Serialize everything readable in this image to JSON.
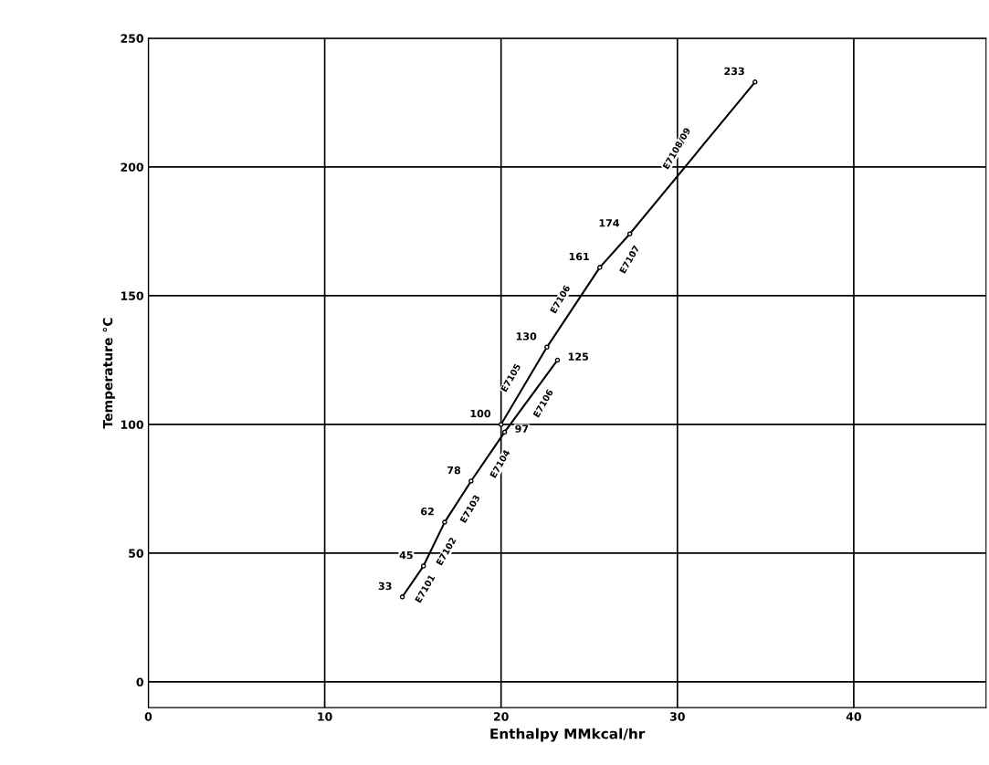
{
  "chart_data": {
    "type": "line",
    "xlabel": "Enthalpy MMkcal/hr",
    "ylabel": "Temperature °C",
    "series": [
      {
        "color": "#000000",
        "x": [
          14.4,
          15.6,
          16.8,
          18.3,
          20.2,
          23.2
        ],
        "values": [
          33,
          45,
          62,
          78,
          97,
          125
        ]
      },
      {
        "color": "#000000",
        "x": [
          20.0,
          22.6,
          25.6,
          27.3,
          34.4
        ],
        "values": [
          100,
          130,
          161,
          174,
          233
        ]
      }
    ],
    "xlim": [
      0,
      47.5
    ],
    "ylim": [
      -10,
      250
    ],
    "xticks": [
      0,
      10,
      20,
      30,
      40
    ],
    "yticks": [
      0,
      50,
      100,
      150,
      200,
      250
    ],
    "grid": true,
    "marker": "circle",
    "line_style": "solid",
    "data_labels": true,
    "annotations": [
      "E7101",
      "E7102",
      "E7103",
      "E7104",
      "E7105",
      "E7106",
      "E7106",
      "E7107",
      "E7108/09"
    ]
  }
}
